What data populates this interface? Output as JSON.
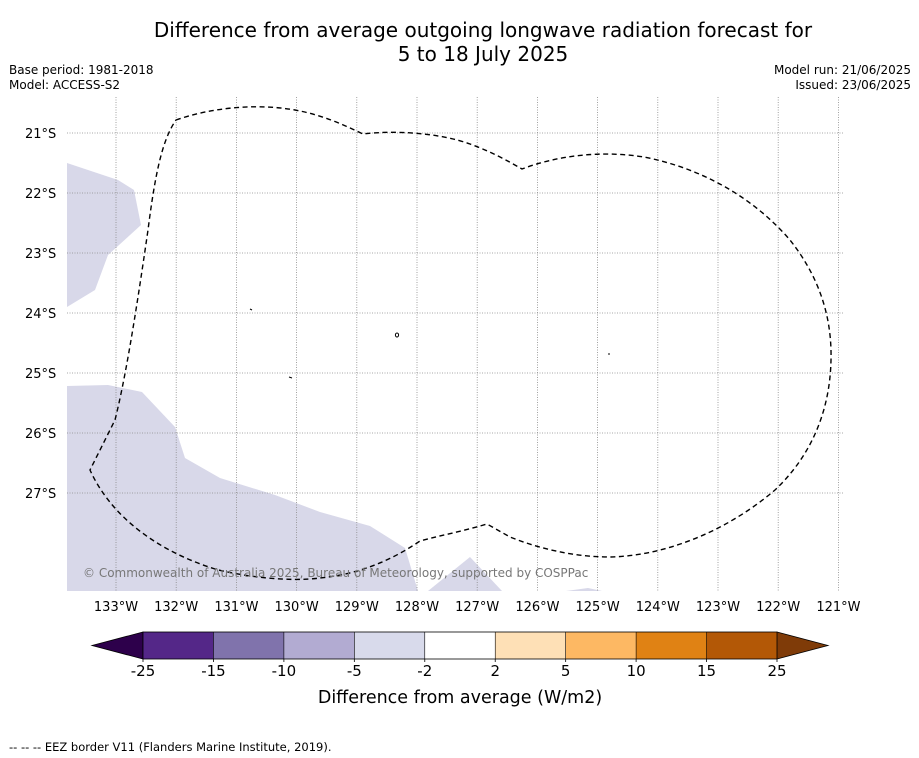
{
  "title_line1": "Difference from average outgoing longwave radiation forecast for",
  "title_line2": "5 to 18 July 2025",
  "base_period": "Base period: 1981-2018",
  "model": "Model: ACCESS-S2",
  "model_run": "Model run: 21/06/2025",
  "issued": "Issued: 23/06/2025",
  "copyright": "© Commonwealth of Australia 2025, Bureau of Meteorology, supported by COSPPac",
  "footer": "--  --  -- EEZ border V11 (Flanders Marine Institute, 2019).",
  "map": {
    "lat_labels": [
      "21°S",
      "22°S",
      "23°S",
      "24°S",
      "25°S",
      "26°S",
      "27°S"
    ],
    "lon_labels": [
      "133°W",
      "132°W",
      "131°W",
      "130°W",
      "129°W",
      "128°W",
      "127°W",
      "126°W",
      "125°W",
      "124°W",
      "123°W",
      "122°W",
      "121°W"
    ],
    "anomaly_fill_color": "#d8d8e9",
    "border_style": "dashed"
  },
  "colorbar": {
    "label": "Difference from average (W/m2)",
    "ticks": [
      "-25",
      "-15",
      "-10",
      "-5",
      "-2",
      "2",
      "5",
      "10",
      "15",
      "25"
    ],
    "colors": [
      "#542788",
      "#8073ac",
      "#b2abd2",
      "#d8daeb",
      "#ffffff",
      "#fee0b6",
      "#fdb863",
      "#e08214",
      "#b35806"
    ],
    "under_color": "#2d004b",
    "over_color": "#7f3b08"
  }
}
